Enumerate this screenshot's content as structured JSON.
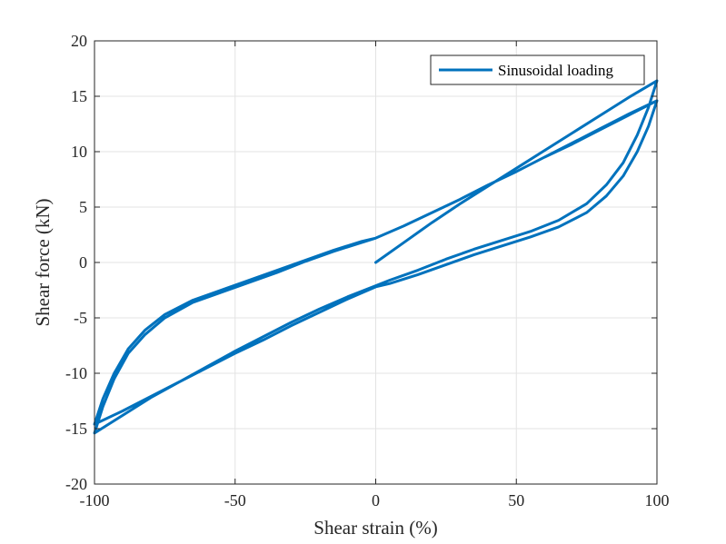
{
  "chart_data": {
    "type": "line",
    "title": "",
    "xlabel": "Shear strain (%)",
    "ylabel": "Shear force (kN)",
    "xlim": [
      -100,
      100
    ],
    "ylim": [
      -20,
      20
    ],
    "xticks": [
      -100,
      -50,
      0,
      50,
      100
    ],
    "yticks": [
      -20,
      -15,
      -10,
      -5,
      0,
      5,
      10,
      15,
      20
    ],
    "grid": true,
    "legend": {
      "position": "top-right",
      "entries": [
        "Sinusoidal loading"
      ]
    },
    "colors": {
      "series": "#0072BD",
      "axis": "#262626",
      "grid": "#e3e3e3"
    },
    "series": [
      {
        "name": "Sinusoidal loading",
        "points": [
          [
            0,
            0
          ],
          [
            10,
            1.8
          ],
          [
            20,
            3.6
          ],
          [
            30,
            5.3
          ],
          [
            40,
            6.9
          ],
          [
            50,
            8.5
          ],
          [
            60,
            10.1
          ],
          [
            70,
            11.7
          ],
          [
            80,
            13.3
          ],
          [
            90,
            14.9
          ],
          [
            100,
            16.4
          ],
          [
            97,
            14.0
          ],
          [
            93,
            11.5
          ],
          [
            88,
            9.0
          ],
          [
            82,
            7.0
          ],
          [
            75,
            5.3
          ],
          [
            65,
            3.8
          ],
          [
            55,
            2.8
          ],
          [
            45,
            2.0
          ],
          [
            35,
            1.2
          ],
          [
            25,
            0.3
          ],
          [
            15,
            -0.7
          ],
          [
            5,
            -1.6
          ],
          [
            0,
            -2.1
          ],
          [
            -10,
            -3.1
          ],
          [
            -20,
            -4.2
          ],
          [
            -30,
            -5.4
          ],
          [
            -40,
            -6.7
          ],
          [
            -50,
            -8.0
          ],
          [
            -60,
            -9.4
          ],
          [
            -70,
            -10.8
          ],
          [
            -80,
            -12.2
          ],
          [
            -90,
            -13.8
          ],
          [
            -100,
            -15.4
          ],
          [
            -97,
            -13.0
          ],
          [
            -93,
            -10.5
          ],
          [
            -88,
            -8.2
          ],
          [
            -82,
            -6.5
          ],
          [
            -75,
            -5.0
          ],
          [
            -65,
            -3.6
          ],
          [
            -55,
            -2.7
          ],
          [
            -45,
            -1.8
          ],
          [
            -35,
            -0.9
          ],
          [
            -25,
            0.1
          ],
          [
            -15,
            1.0
          ],
          [
            -5,
            1.8
          ],
          [
            0,
            2.2
          ],
          [
            10,
            3.3
          ],
          [
            20,
            4.5
          ],
          [
            30,
            5.7
          ],
          [
            40,
            7.0
          ],
          [
            50,
            8.2
          ],
          [
            60,
            9.5
          ],
          [
            70,
            10.7
          ],
          [
            80,
            12.0
          ],
          [
            90,
            13.3
          ],
          [
            100,
            14.6
          ],
          [
            97,
            12.3
          ],
          [
            93,
            10.0
          ],
          [
            88,
            7.8
          ],
          [
            82,
            6.0
          ],
          [
            75,
            4.5
          ],
          [
            65,
            3.2
          ],
          [
            55,
            2.3
          ],
          [
            45,
            1.5
          ],
          [
            35,
            0.7
          ],
          [
            25,
            -0.2
          ],
          [
            15,
            -1.1
          ],
          [
            5,
            -1.9
          ],
          [
            0,
            -2.2
          ],
          [
            -10,
            -3.3
          ],
          [
            -20,
            -4.5
          ],
          [
            -30,
            -5.7
          ],
          [
            -40,
            -7.0
          ],
          [
            -50,
            -8.2
          ],
          [
            -60,
            -9.5
          ],
          [
            -70,
            -10.8
          ],
          [
            -80,
            -12.1
          ],
          [
            -90,
            -13.4
          ],
          [
            -100,
            -14.6
          ],
          [
            -97,
            -12.3
          ],
          [
            -93,
            -10.0
          ],
          [
            -88,
            -7.8
          ],
          [
            -82,
            -6.1
          ],
          [
            -75,
            -4.7
          ],
          [
            -65,
            -3.4
          ],
          [
            -55,
            -2.5
          ],
          [
            -45,
            -1.6
          ],
          [
            -35,
            -0.7
          ],
          [
            -25,
            0.2
          ],
          [
            -15,
            1.1
          ],
          [
            -5,
            1.9
          ],
          [
            0,
            2.2
          ],
          [
            10,
            3.3
          ],
          [
            20,
            4.5
          ],
          [
            30,
            5.7
          ],
          [
            40,
            7.0
          ],
          [
            50,
            8.2
          ],
          [
            60,
            9.5
          ],
          [
            70,
            10.8
          ],
          [
            80,
            12.1
          ],
          [
            90,
            13.4
          ],
          [
            100,
            14.6
          ]
        ]
      }
    ]
  }
}
